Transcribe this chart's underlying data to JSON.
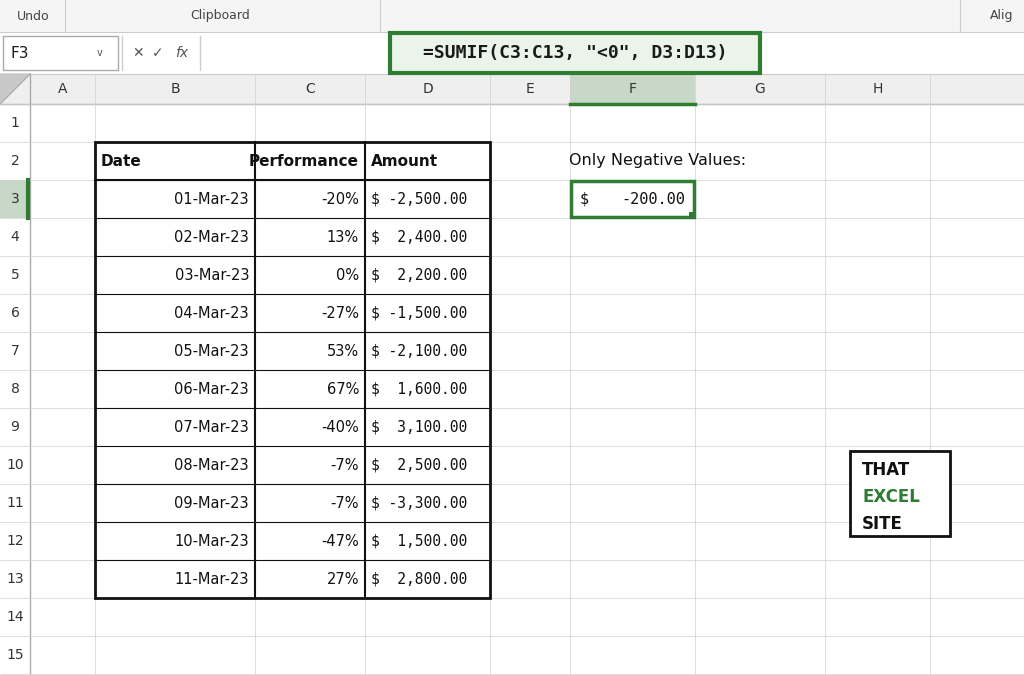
{
  "bg_color": "#f0f0f0",
  "cell_bg": "#ffffff",
  "grid_line_color": "#d0d0d0",
  "col_header_bg": "#efefef",
  "selected_col_bg": "#c8d8c8",
  "toolbar_bg": "#f5f5f5",
  "formula_bar_text": "=SUMIF(C3:C13, \"<0\", D3:D13)",
  "formula_box_text": "F3",
  "col_letters": [
    "A",
    "B",
    "C",
    "D",
    "E",
    "F",
    "G",
    "H"
  ],
  "row_numbers": [
    "1",
    "2",
    "3",
    "4",
    "5",
    "6",
    "7",
    "8",
    "9",
    "10",
    "11",
    "12",
    "13",
    "14",
    "15"
  ],
  "table_headers": [
    "Date",
    "Performance",
    "Amount"
  ],
  "dates": [
    "01-Mar-23",
    "02-Mar-23",
    "03-Mar-23",
    "04-Mar-23",
    "05-Mar-23",
    "06-Mar-23",
    "07-Mar-23",
    "08-Mar-23",
    "09-Mar-23",
    "10-Mar-23",
    "11-Mar-23"
  ],
  "performance": [
    "-20%",
    "13%",
    "0%",
    "-27%",
    "53%",
    "67%",
    "-40%",
    "-7%",
    "-7%",
    "-47%",
    "27%"
  ],
  "amounts": [
    "$ -2,500.00",
    "$  2,400.00",
    "$  2,200.00",
    "$ -1,500.00",
    "$ -2,100.00",
    "$  1,600.00",
    "$  3,100.00",
    "$  2,500.00",
    "$ -3,300.00",
    "$  1,500.00",
    "$  2,800.00"
  ],
  "result_label": "Only Negative Values:",
  "result_dollar": "$",
  "result_number": "-200.00",
  "green_color": "#2e7d32",
  "dark_color": "#1a1a1a"
}
